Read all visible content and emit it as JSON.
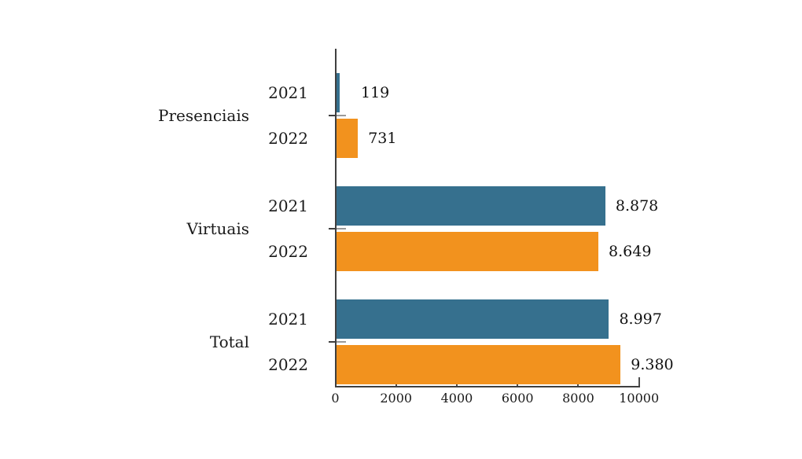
{
  "chart_data": {
    "type": "bar",
    "orientation": "horizontal",
    "title": "",
    "xlabel": "",
    "ylabel": "",
    "xlim": [
      0,
      10000
    ],
    "x_ticks": [
      0,
      2000,
      4000,
      6000,
      8000,
      10000
    ],
    "x_tick_labels": [
      "0",
      "2000",
      "4000",
      "6000",
      "8000",
      "10000"
    ],
    "grid": false,
    "legend": "none (years labeled beside each bar)",
    "categories": [
      "Presenciais",
      "Virtuais",
      "Total"
    ],
    "series": [
      {
        "name": "2021",
        "color": "#36708E",
        "values": [
          119,
          8878,
          8997
        ],
        "value_labels": [
          "119",
          "8.878",
          "8.997"
        ]
      },
      {
        "name": "2022",
        "color": "#F2921E",
        "values": [
          731,
          8649,
          9380
        ],
        "value_labels": [
          "731",
          "8.649",
          "9.380"
        ]
      }
    ]
  },
  "colors": {
    "bar_2021": "#36708E",
    "bar_2022": "#F2921E",
    "axis": "#3F3F3F",
    "tick": "#4D4D4D",
    "inner_ytick": "#9A9A9A",
    "text": "#1A1A1A",
    "background": "#FFFFFF"
  }
}
